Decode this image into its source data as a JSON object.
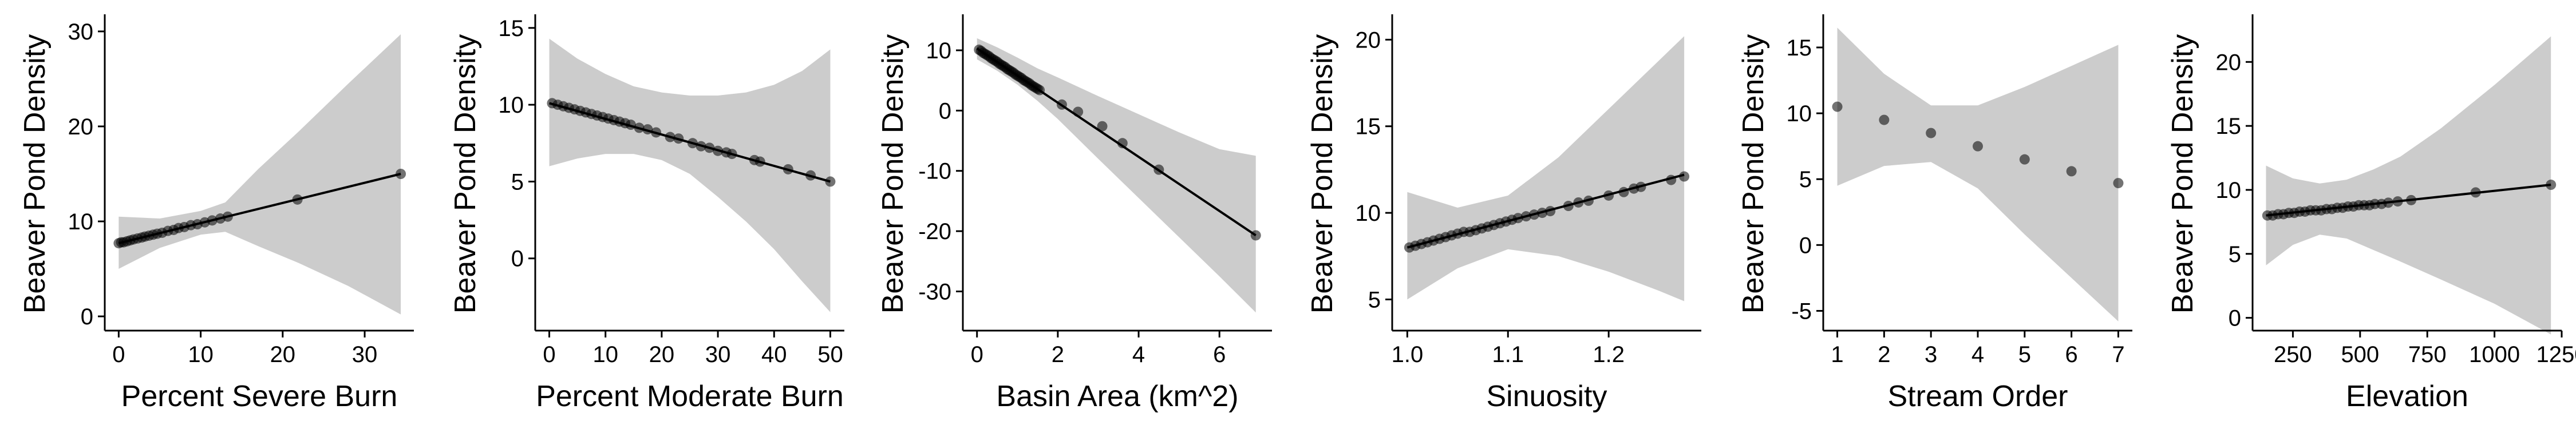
{
  "figure": {
    "background": "#ffffff"
  },
  "style": {
    "ci_fill": "#cccccc",
    "line_color": "#000000",
    "point_color": "#000000",
    "axis_color": "#000000"
  },
  "chart_data": [
    {
      "type": "scatter",
      "xlabel": "Percent Severe Burn",
      "ylabel": "Beaver Pond Density",
      "xlim": [
        -1.7,
        36
      ],
      "ylim": [
        -1.5,
        31.5
      ],
      "xticks": [
        0,
        10,
        20,
        30
      ],
      "yticks": [
        0,
        10,
        20,
        30
      ],
      "fit_line": {
        "x": [
          0,
          34.4
        ],
        "y": [
          7.7,
          15.0
        ]
      },
      "ci_band": {
        "x": [
          0,
          5,
          10,
          13,
          17,
          22,
          28,
          34.4
        ],
        "lower": [
          5.0,
          7.2,
          8.6,
          8.9,
          7.4,
          5.6,
          3.2,
          0.2
        ],
        "upper": [
          10.5,
          10.3,
          11.1,
          12.0,
          15.5,
          19.5,
          24.5,
          29.7
        ]
      },
      "points": [
        {
          "x": 0.0,
          "y": 7.7
        },
        {
          "x": 0.3,
          "y": 7.8
        },
        {
          "x": 0.6,
          "y": 7.8
        },
        {
          "x": 1.0,
          "y": 7.9
        },
        {
          "x": 1.4,
          "y": 8.0
        },
        {
          "x": 1.8,
          "y": 8.1
        },
        {
          "x": 2.3,
          "y": 8.2
        },
        {
          "x": 2.8,
          "y": 8.3
        },
        {
          "x": 3.2,
          "y": 8.4
        },
        {
          "x": 3.7,
          "y": 8.5
        },
        {
          "x": 4.2,
          "y": 8.6
        },
        {
          "x": 4.7,
          "y": 8.7
        },
        {
          "x": 5.3,
          "y": 8.8
        },
        {
          "x": 6.0,
          "y": 9.0
        },
        {
          "x": 6.7,
          "y": 9.1
        },
        {
          "x": 7.3,
          "y": 9.3
        },
        {
          "x": 8.0,
          "y": 9.4
        },
        {
          "x": 8.8,
          "y": 9.6
        },
        {
          "x": 9.6,
          "y": 9.7
        },
        {
          "x": 10.5,
          "y": 9.9
        },
        {
          "x": 11.4,
          "y": 10.1
        },
        {
          "x": 12.4,
          "y": 10.3
        },
        {
          "x": 13.3,
          "y": 10.5
        },
        {
          "x": 21.8,
          "y": 12.3
        },
        {
          "x": 34.4,
          "y": 15.0
        }
      ]
    },
    {
      "type": "scatter",
      "xlabel": "Percent Moderate Burn",
      "ylabel": "Beaver Pond Density",
      "xlim": [
        -2.5,
        52.5
      ],
      "ylim": [
        -4.7,
        15.7
      ],
      "xticks": [
        0,
        10,
        20,
        30,
        40,
        50
      ],
      "yticks": [
        0,
        5,
        10,
        15
      ],
      "fit_line": {
        "x": [
          0,
          50
        ],
        "y": [
          10.1,
          5.0
        ]
      },
      "ci_band": {
        "x": [
          0,
          5,
          10,
          15,
          20,
          25,
          30,
          35,
          40,
          45,
          50
        ],
        "lower": [
          6.0,
          6.5,
          6.8,
          6.8,
          6.4,
          5.5,
          4.0,
          2.4,
          0.6,
          -1.5,
          -3.5
        ],
        "upper": [
          14.3,
          13.0,
          12.0,
          11.2,
          10.8,
          10.6,
          10.6,
          10.8,
          11.3,
          12.2,
          13.6
        ]
      },
      "points": [
        {
          "x": 0.5,
          "y": 10.1
        },
        {
          "x": 1.5,
          "y": 10.0
        },
        {
          "x": 2.5,
          "y": 9.9
        },
        {
          "x": 3.5,
          "y": 9.8
        },
        {
          "x": 4.5,
          "y": 9.7
        },
        {
          "x": 5.5,
          "y": 9.6
        },
        {
          "x": 6.5,
          "y": 9.5
        },
        {
          "x": 7.5,
          "y": 9.4
        },
        {
          "x": 8.5,
          "y": 9.3
        },
        {
          "x": 9.5,
          "y": 9.2
        },
        {
          "x": 10.5,
          "y": 9.1
        },
        {
          "x": 11.5,
          "y": 9.0
        },
        {
          "x": 12.5,
          "y": 8.9
        },
        {
          "x": 13.5,
          "y": 8.8
        },
        {
          "x": 14.5,
          "y": 8.7
        },
        {
          "x": 16.0,
          "y": 8.5
        },
        {
          "x": 17.5,
          "y": 8.4
        },
        {
          "x": 19.0,
          "y": 8.2
        },
        {
          "x": 21.5,
          "y": 7.9
        },
        {
          "x": 23.0,
          "y": 7.8
        },
        {
          "x": 25.5,
          "y": 7.5
        },
        {
          "x": 27.0,
          "y": 7.3
        },
        {
          "x": 28.5,
          "y": 7.2
        },
        {
          "x": 30.0,
          "y": 7.0
        },
        {
          "x": 31.5,
          "y": 6.9
        },
        {
          "x": 32.5,
          "y": 6.8
        },
        {
          "x": 36.5,
          "y": 6.4
        },
        {
          "x": 37.5,
          "y": 6.3
        },
        {
          "x": 42.5,
          "y": 5.8
        },
        {
          "x": 46.5,
          "y": 5.4
        },
        {
          "x": 50.0,
          "y": 5.0
        }
      ]
    },
    {
      "type": "scatter",
      "xlabel": "Basin Area (km^2)",
      "ylabel": "Beaver Pond Density",
      "xlim": [
        -0.35,
        7.3
      ],
      "ylim": [
        -36.5,
        15.5
      ],
      "xticks": [
        0,
        2,
        4,
        6
      ],
      "yticks": [
        -30,
        -20,
        -10,
        0,
        10
      ],
      "fit_line": {
        "x": [
          0,
          6.9
        ],
        "y": [
          10.3,
          -20.7
        ]
      },
      "ci_band": {
        "x": [
          0,
          0.5,
          1,
          1.5,
          2,
          3,
          4,
          5,
          6,
          6.9
        ],
        "lower": [
          8.5,
          6.6,
          4.3,
          1.6,
          -1.4,
          -8.0,
          -14.5,
          -21.0,
          -27.5,
          -33.5
        ],
        "upper": [
          12.0,
          10.5,
          8.8,
          7.0,
          5.5,
          2.4,
          -0.6,
          -3.6,
          -6.4,
          -7.5
        ]
      },
      "points": [
        {
          "x": 0.05,
          "y": 10.1
        },
        {
          "x": 0.1,
          "y": 9.9
        },
        {
          "x": 0.15,
          "y": 9.6
        },
        {
          "x": 0.2,
          "y": 9.4
        },
        {
          "x": 0.25,
          "y": 9.2
        },
        {
          "x": 0.3,
          "y": 9.0
        },
        {
          "x": 0.35,
          "y": 8.7
        },
        {
          "x": 0.4,
          "y": 8.5
        },
        {
          "x": 0.45,
          "y": 8.3
        },
        {
          "x": 0.5,
          "y": 8.1
        },
        {
          "x": 0.55,
          "y": 7.8
        },
        {
          "x": 0.6,
          "y": 7.6
        },
        {
          "x": 0.65,
          "y": 7.4
        },
        {
          "x": 0.7,
          "y": 7.2
        },
        {
          "x": 0.75,
          "y": 6.9
        },
        {
          "x": 0.8,
          "y": 6.7
        },
        {
          "x": 0.85,
          "y": 6.5
        },
        {
          "x": 0.9,
          "y": 6.3
        },
        {
          "x": 0.95,
          "y": 6.0
        },
        {
          "x": 1.0,
          "y": 5.8
        },
        {
          "x": 1.05,
          "y": 5.6
        },
        {
          "x": 1.1,
          "y": 5.4
        },
        {
          "x": 1.15,
          "y": 5.1
        },
        {
          "x": 1.2,
          "y": 4.9
        },
        {
          "x": 1.25,
          "y": 4.7
        },
        {
          "x": 1.3,
          "y": 4.5
        },
        {
          "x": 1.35,
          "y": 4.2
        },
        {
          "x": 1.4,
          "y": 4.0
        },
        {
          "x": 1.45,
          "y": 3.8
        },
        {
          "x": 1.5,
          "y": 3.6
        },
        {
          "x": 1.55,
          "y": 3.4
        },
        {
          "x": 2.1,
          "y": 1.0
        },
        {
          "x": 2.5,
          "y": -0.2
        },
        {
          "x": 3.1,
          "y": -2.6
        },
        {
          "x": 3.6,
          "y": -5.4
        },
        {
          "x": 4.5,
          "y": -9.8
        },
        {
          "x": 6.9,
          "y": -20.7
        }
      ]
    },
    {
      "type": "scatter",
      "xlabel": "Sinuosity",
      "ylabel": "Beaver Pond Density",
      "xlim": [
        0.985,
        1.292
      ],
      "ylim": [
        3.2,
        21.3
      ],
      "xticks": [
        1.0,
        1.1,
        1.2
      ],
      "xtick_labels": [
        "1.0",
        "1.1",
        "1.2"
      ],
      "yticks": [
        5,
        10,
        15,
        20
      ],
      "fit_line": {
        "x": [
          1.0,
          1.275
        ],
        "y": [
          8.0,
          12.2
        ]
      },
      "ci_band": {
        "x": [
          1.0,
          1.05,
          1.1,
          1.15,
          1.2,
          1.25,
          1.275
        ],
        "lower": [
          5.0,
          6.8,
          7.9,
          7.5,
          6.6,
          5.5,
          4.9
        ],
        "upper": [
          11.2,
          10.3,
          11.0,
          13.2,
          16.0,
          18.8,
          20.2
        ]
      },
      "points": [
        {
          "x": 1.002,
          "y": 8.0
        },
        {
          "x": 1.008,
          "y": 8.1
        },
        {
          "x": 1.014,
          "y": 8.2
        },
        {
          "x": 1.02,
          "y": 8.3
        },
        {
          "x": 1.026,
          "y": 8.4
        },
        {
          "x": 1.032,
          "y": 8.5
        },
        {
          "x": 1.038,
          "y": 8.6
        },
        {
          "x": 1.044,
          "y": 8.7
        },
        {
          "x": 1.05,
          "y": 8.8
        },
        {
          "x": 1.056,
          "y": 8.9
        },
        {
          "x": 1.062,
          "y": 8.9
        },
        {
          "x": 1.068,
          "y": 9.0
        },
        {
          "x": 1.074,
          "y": 9.1
        },
        {
          "x": 1.08,
          "y": 9.2
        },
        {
          "x": 1.086,
          "y": 9.3
        },
        {
          "x": 1.092,
          "y": 9.4
        },
        {
          "x": 1.098,
          "y": 9.5
        },
        {
          "x": 1.104,
          "y": 9.6
        },
        {
          "x": 1.11,
          "y": 9.7
        },
        {
          "x": 1.118,
          "y": 9.8
        },
        {
          "x": 1.126,
          "y": 9.9
        },
        {
          "x": 1.134,
          "y": 10.0
        },
        {
          "x": 1.142,
          "y": 10.1
        },
        {
          "x": 1.16,
          "y": 10.4
        },
        {
          "x": 1.17,
          "y": 10.6
        },
        {
          "x": 1.18,
          "y": 10.7
        },
        {
          "x": 1.2,
          "y": 11.0
        },
        {
          "x": 1.215,
          "y": 11.2
        },
        {
          "x": 1.225,
          "y": 11.4
        },
        {
          "x": 1.232,
          "y": 11.5
        },
        {
          "x": 1.262,
          "y": 11.9
        },
        {
          "x": 1.275,
          "y": 12.1
        }
      ]
    },
    {
      "type": "scatter",
      "xlabel": "Stream Order",
      "ylabel": "Beaver Pond Density",
      "xlim": [
        0.7,
        7.3
      ],
      "ylim": [
        -6.5,
        17.3
      ],
      "xticks": [
        1,
        2,
        3,
        4,
        5,
        6,
        7
      ],
      "yticks": [
        -5,
        0,
        5,
        10,
        15
      ],
      "fit_line": null,
      "ci_band": {
        "x": [
          1,
          2,
          3,
          4,
          5,
          6,
          7
        ],
        "lower": [
          4.5,
          6.0,
          6.3,
          4.3,
          0.8,
          -2.5,
          -5.8
        ],
        "upper": [
          16.5,
          13.0,
          10.6,
          10.6,
          12.0,
          13.6,
          15.2
        ]
      },
      "points": [
        {
          "x": 1,
          "y": 10.5
        },
        {
          "x": 2,
          "y": 9.5
        },
        {
          "x": 3,
          "y": 8.5
        },
        {
          "x": 4,
          "y": 7.5
        },
        {
          "x": 5,
          "y": 6.5
        },
        {
          "x": 6,
          "y": 5.6
        },
        {
          "x": 7,
          "y": 4.7
        }
      ]
    },
    {
      "type": "scatter",
      "xlabel": "Elevation",
      "ylabel": "Beaver Pond Density",
      "xlim": [
        100,
        1250
      ],
      "ylim": [
        -1.0,
        23.5
      ],
      "xticks": [
        250,
        500,
        750,
        1000,
        1250
      ],
      "yticks": [
        0,
        5,
        10,
        15,
        20
      ],
      "fit_line": {
        "x": [
          150,
          1210
        ],
        "y": [
          8.0,
          10.4
        ]
      },
      "ci_band": {
        "x": [
          150,
          250,
          350,
          450,
          550,
          650,
          800,
          1000,
          1210
        ],
        "lower": [
          4.1,
          5.7,
          6.5,
          6.2,
          5.3,
          4.4,
          3.0,
          1.1,
          -1.3
        ],
        "upper": [
          11.9,
          10.9,
          10.5,
          10.8,
          11.6,
          12.6,
          14.8,
          18.2,
          22.0
        ]
      },
      "points": [
        {
          "x": 155,
          "y": 8.0
        },
        {
          "x": 175,
          "y": 8.0
        },
        {
          "x": 195,
          "y": 8.1
        },
        {
          "x": 215,
          "y": 8.1
        },
        {
          "x": 235,
          "y": 8.2
        },
        {
          "x": 255,
          "y": 8.2
        },
        {
          "x": 275,
          "y": 8.3
        },
        {
          "x": 295,
          "y": 8.3
        },
        {
          "x": 315,
          "y": 8.4
        },
        {
          "x": 335,
          "y": 8.4
        },
        {
          "x": 355,
          "y": 8.4
        },
        {
          "x": 375,
          "y": 8.5
        },
        {
          "x": 395,
          "y": 8.5
        },
        {
          "x": 415,
          "y": 8.6
        },
        {
          "x": 435,
          "y": 8.6
        },
        {
          "x": 455,
          "y": 8.7
        },
        {
          "x": 475,
          "y": 8.7
        },
        {
          "x": 495,
          "y": 8.8
        },
        {
          "x": 515,
          "y": 8.8
        },
        {
          "x": 535,
          "y": 8.8
        },
        {
          "x": 555,
          "y": 8.9
        },
        {
          "x": 580,
          "y": 8.9
        },
        {
          "x": 605,
          "y": 9.0
        },
        {
          "x": 640,
          "y": 9.1
        },
        {
          "x": 690,
          "y": 9.2
        },
        {
          "x": 930,
          "y": 9.8
        },
        {
          "x": 1210,
          "y": 10.4
        }
      ]
    }
  ]
}
